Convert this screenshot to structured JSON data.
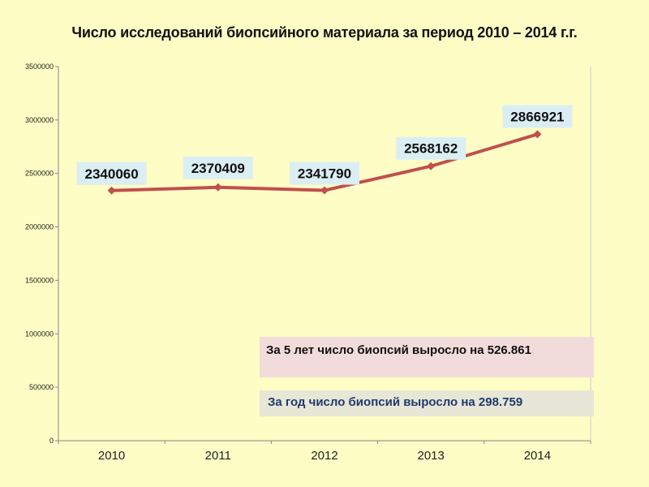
{
  "chart_data": {
    "type": "line",
    "title": "Число исследований биопсийного материала за период 2010 – 2014 г.г.",
    "categories": [
      "2010",
      "2011",
      "2012",
      "2013",
      "2014"
    ],
    "series": [
      {
        "values": [
          2340060,
          2370409,
          2341790,
          2568162,
          2866921
        ],
        "color": "#c0504d"
      }
    ],
    "data_labels": [
      "2340060",
      "2370409",
      "2341790",
      "2568162",
      "2866921"
    ],
    "ylim": [
      0,
      3500000
    ],
    "yticks": [
      0,
      500000,
      1000000,
      1500000,
      2000000,
      2500000,
      3000000,
      3500000
    ],
    "ytick_labels": [
      "0",
      "500000",
      "1000000",
      "1500000",
      "2000000",
      "2500000",
      "3000000",
      "3500000"
    ],
    "grid": false,
    "legend": "none"
  },
  "annotations": {
    "five_years": "За 5 лет число биопсий выросло на 526.861",
    "one_year": "За год число биопсий выросло на 298.759"
  },
  "colors": {
    "background": "#fdfdc5",
    "line": "#c0504d",
    "label_box": "#dbeef4",
    "note_pink": "#f2dcdb",
    "note_grey": "#e8e6d6"
  }
}
